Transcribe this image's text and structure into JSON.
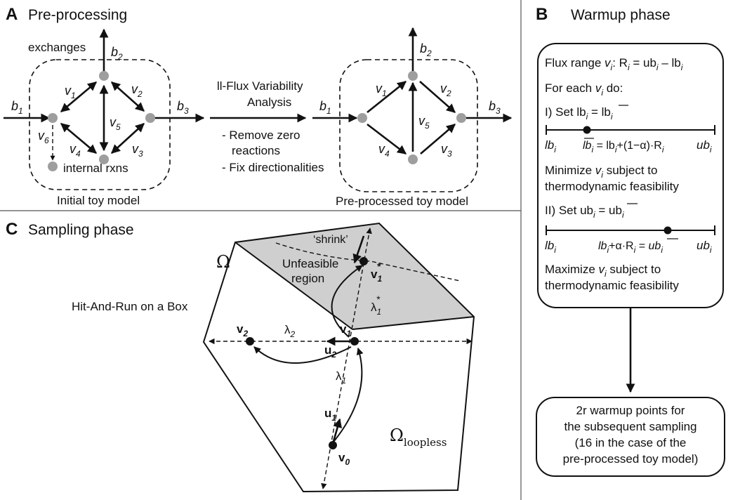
{
  "panel_a": {
    "letter": "A",
    "title": "Pre-processing",
    "exchanges_label": "exchanges",
    "internal_label": "internal rxns",
    "initial_caption": "Initial toy model",
    "preprocessed_caption": "Pre-processed toy model",
    "ll_fva_line1": "ll-Flux Variability",
    "ll_fva_line2": "Analysis",
    "step1_line1": "- Remove zero",
    "step1_line2": "reactions",
    "step2": "- Fix directionalities",
    "b": "b",
    "v": "v",
    "idx": [
      "1",
      "2",
      "3",
      "4",
      "5",
      "6"
    ]
  },
  "panel_b": {
    "letter": "B",
    "title": "Warmup phase",
    "flux_range_pre": "Flux range ",
    "flux_range_post": ": R",
    "flux_range_eq": " = ub",
    "flux_range_minus": " – lb",
    "for_each_pre": "For each ",
    "for_each_post": " do:",
    "step1_pre": "I) Set lb",
    "step1_eq": " = ",
    "step1_val": "lb",
    "lb": "lb",
    "ub": "ub",
    "formula1": "lb",
    "formula1_b": " = lb",
    "formula1_c": "+(1−α)·R",
    "minimize_pre": "Minimize ",
    "minimize_post": " subject to",
    "thermo": "thermodynamic feasibility",
    "step2_pre": "II) Set ub",
    "step2_eq": " = ",
    "step2_val": "ub",
    "formula2_a": "lb",
    "formula2_b": "+α·R",
    "formula2_c": " = ",
    "formula2_d": "ub",
    "maximize_pre": "Maximize ",
    "maximize_post": " subject to",
    "i": "i",
    "result_line1": "2r warmup points for",
    "result_line2": "the subsequent sampling",
    "result_line3": "(16 in the case of the",
    "result_line4": "pre-processed toy model)"
  },
  "panel_c": {
    "letter": "C",
    "title": "Sampling phase",
    "method": "Hit-And-Run on a Box",
    "shrink": "‘shrink’",
    "unfeasible_line1": "Unfeasible",
    "unfeasible_line2": "region",
    "omega": "Ω",
    "omega_loopless_sub": "loopless",
    "v": "v",
    "u": "u",
    "lambda": "λ",
    "star": "*",
    "idx0": "0",
    "idx1": "1",
    "idx2": "2"
  },
  "colors": {
    "node": "#9e9e9e",
    "unfeasible_fill": "#cfcfcf",
    "line": "#111111"
  }
}
